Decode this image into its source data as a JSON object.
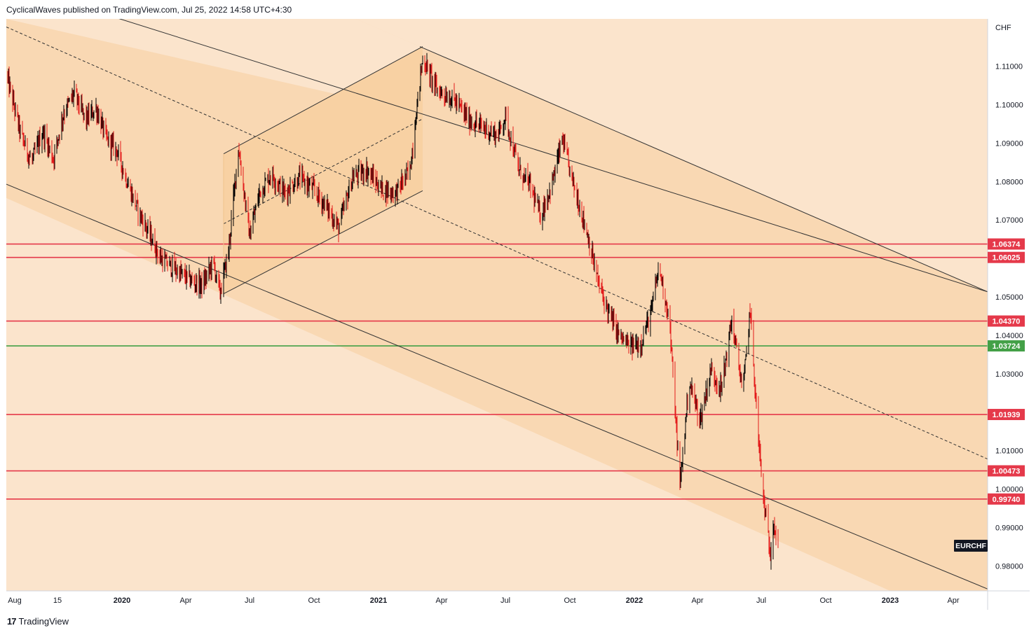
{
  "header": {
    "publisher_line": "CyclicalWaves published on TradingView.com, Jul 25, 2022 14:58 UTC+4:30"
  },
  "footer": {
    "brand": "TradingView",
    "logo_glyph": "17"
  },
  "colors": {
    "outer_channel_fill": "#fbe4cc",
    "inner_channel_fill": "#f9d8b3",
    "box_fill": "#f8d1a3",
    "candle_up": "#000000",
    "candle_down": "#e31b1b",
    "red_level": "#e5394a",
    "green_level": "#43a047"
  },
  "chart_data": {
    "type": "candlestick",
    "symbol": "EURCHF",
    "currency_label": "CHF",
    "x_axis": {
      "start": "2019-07-20",
      "end": "2023-05-20",
      "ticks": [
        {
          "label": "Aug",
          "date": "2019-08-01"
        },
        {
          "label": "15",
          "date": "2019-10-01"
        },
        {
          "label": "2020",
          "date": "2020-01-01"
        },
        {
          "label": "Apr",
          "date": "2020-04-01"
        },
        {
          "label": "Jul",
          "date": "2020-07-01"
        },
        {
          "label": "Oct",
          "date": "2020-10-01"
        },
        {
          "label": "2021",
          "date": "2021-01-01"
        },
        {
          "label": "Apr",
          "date": "2021-04-01"
        },
        {
          "label": "Jul",
          "date": "2021-07-01"
        },
        {
          "label": "Oct",
          "date": "2021-10-01"
        },
        {
          "label": "2022",
          "date": "2022-01-01"
        },
        {
          "label": "Apr",
          "date": "2022-04-01"
        },
        {
          "label": "Jul",
          "date": "2022-07-01"
        },
        {
          "label": "Oct",
          "date": "2022-10-01"
        },
        {
          "label": "2023",
          "date": "2023-01-01"
        },
        {
          "label": "Apr",
          "date": "2023-04-01"
        }
      ]
    },
    "y_axis": {
      "min": 0.9735,
      "max": 1.1223,
      "ticks": [
        "0.98000",
        "0.99000",
        "1.00000",
        "1.01000",
        "1.02000",
        "1.03000",
        "1.04000",
        "1.05000",
        "1.06000",
        "1.07000",
        "1.08000",
        "1.09000",
        "1.10000",
        "1.11000"
      ]
    },
    "horizontal_levels": [
      {
        "value": 1.06374,
        "label": "1.06374",
        "color": "red"
      },
      {
        "value": 1.06025,
        "label": "1.06025",
        "color": "red"
      },
      {
        "value": 1.0437,
        "label": "1.04370",
        "color": "red"
      },
      {
        "value": 1.03724,
        "label": "1.03724",
        "color": "green"
      },
      {
        "value": 1.01939,
        "label": "1.01939",
        "color": "red"
      },
      {
        "value": 1.00473,
        "label": "1.00473",
        "color": "red"
      },
      {
        "value": 0.9974,
        "label": "0.99740",
        "color": "red"
      }
    ],
    "price_path": [
      [
        "2019-07-20",
        1.108
      ],
      [
        "2019-08-10",
        1.092
      ],
      [
        "2019-08-25",
        1.085
      ],
      [
        "2019-09-10",
        1.093
      ],
      [
        "2019-09-25",
        1.086
      ],
      [
        "2019-10-10",
        1.098
      ],
      [
        "2019-10-25",
        1.103
      ],
      [
        "2019-11-10",
        1.096
      ],
      [
        "2019-11-25",
        1.099
      ],
      [
        "2019-12-10",
        1.091
      ],
      [
        "2019-12-25",
        1.088
      ],
      [
        "2020-01-10",
        1.079
      ],
      [
        "2020-01-25",
        1.072
      ],
      [
        "2020-02-10",
        1.066
      ],
      [
        "2020-02-25",
        1.06
      ],
      [
        "2020-03-10",
        1.058
      ],
      [
        "2020-03-25",
        1.056
      ],
      [
        "2020-04-10",
        1.054
      ],
      [
        "2020-04-25",
        1.053
      ],
      [
        "2020-05-10",
        1.059
      ],
      [
        "2020-05-20",
        1.051
      ],
      [
        "2020-06-01",
        1.062
      ],
      [
        "2020-06-15",
        1.089
      ],
      [
        "2020-07-01",
        1.066
      ],
      [
        "2020-07-15",
        1.077
      ],
      [
        "2020-08-01",
        1.082
      ],
      [
        "2020-08-20",
        1.077
      ],
      [
        "2020-09-10",
        1.081
      ],
      [
        "2020-09-30",
        1.078
      ],
      [
        "2020-10-20",
        1.073
      ],
      [
        "2020-11-05",
        1.068
      ],
      [
        "2020-11-25",
        1.081
      ],
      [
        "2020-12-15",
        1.083
      ],
      [
        "2021-01-05",
        1.078
      ],
      [
        "2021-01-25",
        1.077
      ],
      [
        "2021-02-15",
        1.083
      ],
      [
        "2021-02-25",
        1.1
      ],
      [
        "2021-03-05",
        1.112
      ],
      [
        "2021-03-25",
        1.104
      ],
      [
        "2021-04-20",
        1.101
      ],
      [
        "2021-05-10",
        1.096
      ],
      [
        "2021-05-30",
        1.094
      ],
      [
        "2021-06-20",
        1.092
      ],
      [
        "2021-07-01",
        1.097
      ],
      [
        "2021-07-20",
        1.083
      ],
      [
        "2021-08-05",
        1.079
      ],
      [
        "2021-08-20",
        1.071
      ],
      [
        "2021-09-05",
        1.079
      ],
      [
        "2021-09-20",
        1.091
      ],
      [
        "2021-10-05",
        1.08
      ],
      [
        "2021-10-25",
        1.067
      ],
      [
        "2021-11-10",
        1.054
      ],
      [
        "2021-11-25",
        1.046
      ],
      [
        "2021-12-10",
        1.04
      ],
      [
        "2021-12-25",
        1.037
      ],
      [
        "2022-01-10",
        1.038
      ],
      [
        "2022-01-25",
        1.046
      ],
      [
        "2022-02-05",
        1.058
      ],
      [
        "2022-02-20",
        1.044
      ],
      [
        "2022-03-01",
        1.018
      ],
      [
        "2022-03-07",
        1.001
      ],
      [
        "2022-03-20",
        1.028
      ],
      [
        "2022-04-05",
        1.018
      ],
      [
        "2022-04-20",
        1.031
      ],
      [
        "2022-05-05",
        1.026
      ],
      [
        "2022-05-20",
        1.044
      ],
      [
        "2022-06-05",
        1.025
      ],
      [
        "2022-06-15",
        1.047
      ],
      [
        "2022-06-25",
        1.018
      ],
      [
        "2022-07-01",
        1.004
      ],
      [
        "2022-07-05",
        0.996
      ],
      [
        "2022-07-10",
        0.989
      ],
      [
        "2022-07-14",
        0.983
      ],
      [
        "2022-07-18",
        0.992
      ],
      [
        "2022-07-25",
        0.985
      ]
    ],
    "last_candle": "2022-07-25",
    "trendlines": {
      "outer_channel_upper": [
        [
          "2019-07-20",
          1.1316
        ],
        [
          "2023-05-20",
          1.0513
        ]
      ],
      "outer_channel_lower": [
        [
          "2019-07-20",
          1.0793
        ],
        [
          "2023-05-20",
          0.974
        ]
      ],
      "inner_channel_upper": [
        [
          "2021-03-01",
          1.1151
        ],
        [
          "2023-05-20",
          1.0513
        ]
      ],
      "inner_channel_lower": [
        [
          "2019-07-20",
          1.0757
        ],
        [
          "2023-01-01",
          0.9735
        ]
      ],
      "mid_dashed": [
        [
          "2019-07-20",
          1.1202
        ],
        [
          "2023-05-20",
          1.0078
        ]
      ],
      "rising_box_upper": [
        [
          "2020-05-25",
          1.0872
        ],
        [
          "2021-03-05",
          1.1151
        ]
      ],
      "rising_box_lower": [
        [
          "2020-05-25",
          1.0508
        ],
        [
          "2021-03-05",
          1.0776
        ]
      ],
      "rising_box_mid_dashed": [
        [
          "2020-05-25",
          1.069
        ],
        [
          "2021-03-05",
          1.0963
        ]
      ]
    }
  }
}
